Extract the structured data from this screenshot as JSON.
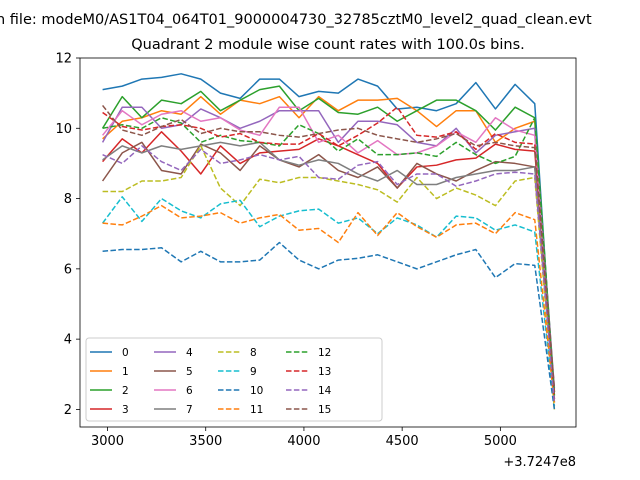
{
  "chart_data": {
    "type": "line",
    "suptitle": "n file: modeM0/AS1T04_064T01_9000004730_32785cztM0_level2_quad_clean.evt",
    "title": "Quadrant 2 module wise count rates with 100.0s bins.",
    "xlabel": "",
    "ylabel": "",
    "x_offset_label": "+3.7247e8",
    "xlim": [
      2860,
      5385
    ],
    "ylim": [
      1.5,
      12
    ],
    "x_ticks": [
      3000,
      3500,
      4000,
      4500,
      5000
    ],
    "y_ticks": [
      2,
      4,
      6,
      8,
      10,
      12
    ],
    "grid": false,
    "legend_position": "lower-left",
    "legend_columns": 4,
    "x": [
      2975,
      3075,
      3175,
      3275,
      3375,
      3475,
      3575,
      3675,
      3775,
      3875,
      3975,
      4075,
      4175,
      4275,
      4375,
      4475,
      4575,
      4675,
      4775,
      4875,
      4975,
      5075,
      5175,
      5275
    ],
    "series": [
      {
        "name": "0",
        "color": "#1f77b4",
        "dash": "solid",
        "values": [
          11.1,
          11.2,
          11.4,
          11.45,
          11.55,
          11.4,
          11.0,
          10.85,
          11.4,
          11.4,
          10.9,
          11.05,
          11.0,
          11.4,
          11.2,
          10.55,
          10.6,
          10.5,
          10.7,
          11.3,
          10.55,
          11.25,
          10.7,
          2.2
        ]
      },
      {
        "name": "1",
        "color": "#ff7f0e",
        "dash": "solid",
        "values": [
          9.7,
          10.2,
          10.3,
          10.5,
          10.4,
          10.9,
          10.4,
          10.8,
          10.7,
          10.9,
          10.3,
          10.9,
          10.5,
          10.8,
          10.8,
          10.85,
          10.5,
          10.05,
          10.5,
          10.5,
          9.6,
          10.0,
          10.2,
          2.4
        ]
      },
      {
        "name": "2",
        "color": "#2ca02c",
        "dash": "solid",
        "values": [
          10.0,
          10.9,
          10.3,
          10.8,
          10.7,
          11.05,
          10.5,
          10.8,
          11.1,
          11.2,
          10.5,
          10.85,
          10.45,
          10.4,
          10.6,
          10.2,
          10.5,
          10.8,
          10.8,
          10.5,
          9.95,
          10.6,
          10.3,
          2.5
        ]
      },
      {
        "name": "3",
        "color": "#d62728",
        "dash": "solid",
        "values": [
          9.05,
          9.7,
          9.3,
          9.9,
          9.35,
          8.7,
          9.5,
          9.0,
          9.3,
          9.35,
          9.4,
          9.7,
          9.5,
          9.25,
          9.0,
          8.3,
          8.9,
          8.95,
          9.1,
          9.15,
          9.55,
          9.4,
          9.35,
          2.5
        ]
      },
      {
        "name": "4",
        "color": "#9467bd",
        "dash": "solid",
        "values": [
          9.6,
          10.6,
          10.6,
          10.0,
          10.1,
          10.55,
          10.3,
          10.0,
          10.2,
          10.5,
          10.5,
          10.5,
          9.6,
          10.2,
          10.2,
          10.1,
          9.6,
          9.5,
          10.0,
          9.3,
          9.8,
          9.9,
          10.0,
          2.6
        ]
      },
      {
        "name": "5",
        "color": "#8c564b",
        "dash": "solid",
        "values": [
          8.5,
          9.3,
          9.6,
          8.8,
          8.7,
          9.55,
          9.3,
          8.8,
          9.5,
          9.1,
          8.9,
          9.25,
          8.8,
          8.6,
          8.9,
          8.3,
          9.0,
          8.7,
          8.5,
          8.8,
          9.05,
          9.0,
          8.9,
          2.5
        ]
      },
      {
        "name": "6",
        "color": "#e377c2",
        "dash": "solid",
        "values": [
          9.8,
          10.5,
          10.1,
          10.4,
          10.5,
          10.2,
          10.3,
          9.95,
          9.8,
          10.6,
          10.6,
          9.6,
          9.8,
          9.3,
          9.65,
          9.25,
          9.3,
          9.5,
          9.9,
          9.6,
          10.3,
          9.95,
          9.8,
          2.2
        ]
      },
      {
        "name": "7",
        "color": "#7f7f7f",
        "dash": "solid",
        "values": [
          9.1,
          9.5,
          9.3,
          9.5,
          9.4,
          9.5,
          9.6,
          9.5,
          9.6,
          9.1,
          8.95,
          9.1,
          9.0,
          8.7,
          8.5,
          8.8,
          8.4,
          8.4,
          8.6,
          8.7,
          8.8,
          8.8,
          8.9,
          2.3
        ]
      },
      {
        "name": "8",
        "color": "#bcbd22",
        "dash": "dashed",
        "values": [
          8.2,
          8.2,
          8.5,
          8.5,
          8.6,
          9.5,
          8.3,
          7.8,
          8.55,
          8.45,
          8.6,
          8.6,
          8.5,
          8.4,
          8.25,
          7.9,
          8.6,
          8.0,
          8.3,
          8.1,
          7.8,
          8.5,
          8.6,
          2.0
        ]
      },
      {
        "name": "9",
        "color": "#17becf",
        "dash": "dashed",
        "values": [
          7.3,
          8.05,
          7.35,
          8.0,
          7.65,
          7.45,
          7.85,
          7.95,
          7.2,
          7.5,
          7.65,
          7.7,
          7.3,
          7.45,
          7.0,
          7.45,
          7.25,
          6.9,
          7.5,
          7.45,
          7.1,
          7.25,
          7.05,
          2.1
        ]
      },
      {
        "name": "10",
        "color": "#1f77b4",
        "dash": "dashed",
        "values": [
          6.5,
          6.55,
          6.55,
          6.6,
          6.2,
          6.5,
          6.2,
          6.2,
          6.25,
          6.75,
          6.25,
          6.0,
          6.25,
          6.3,
          6.4,
          6.2,
          6.0,
          6.2,
          6.4,
          6.55,
          5.75,
          6.15,
          6.1,
          2.0
        ]
      },
      {
        "name": "11",
        "color": "#ff7f0e",
        "dash": "dashed",
        "values": [
          7.3,
          7.25,
          7.5,
          7.8,
          7.45,
          7.5,
          7.6,
          7.3,
          7.45,
          7.55,
          7.1,
          7.15,
          6.75,
          7.6,
          6.95,
          7.6,
          7.2,
          6.9,
          7.25,
          7.3,
          7.0,
          7.6,
          7.4,
          2.2
        ]
      },
      {
        "name": "12",
        "color": "#2ca02c",
        "dash": "dashed",
        "values": [
          10.0,
          10.1,
          10.0,
          10.3,
          10.15,
          9.6,
          9.8,
          9.65,
          9.6,
          9.5,
          10.1,
          9.85,
          9.35,
          9.7,
          9.25,
          9.25,
          9.3,
          9.2,
          9.6,
          9.25,
          9.0,
          9.2,
          10.3,
          2.4
        ]
      },
      {
        "name": "13",
        "color": "#d62728",
        "dash": "dashed",
        "values": [
          10.45,
          10.05,
          9.95,
          10.05,
          10.1,
          10.0,
          9.75,
          9.85,
          9.6,
          9.55,
          9.55,
          9.85,
          9.5,
          9.8,
          10.15,
          10.6,
          9.8,
          9.75,
          9.9,
          9.4,
          9.85,
          9.6,
          9.55,
          2.3
        ]
      },
      {
        "name": "14",
        "color": "#9467bd",
        "dash": "dashed",
        "values": [
          9.25,
          9.0,
          9.5,
          9.05,
          8.8,
          9.4,
          9.0,
          9.1,
          9.25,
          9.1,
          9.2,
          8.6,
          8.55,
          8.95,
          9.05,
          8.4,
          8.7,
          8.7,
          8.35,
          8.5,
          8.7,
          8.75,
          8.7,
          2.2
        ]
      },
      {
        "name": "15",
        "color": "#8c564b",
        "dash": "dashed",
        "values": [
          10.65,
          9.95,
          9.8,
          10.05,
          10.25,
          9.85,
          10.0,
          9.9,
          9.9,
          9.8,
          9.75,
          9.85,
          9.95,
          10.0,
          9.8,
          9.7,
          9.6,
          9.7,
          9.85,
          9.5,
          9.6,
          9.5,
          9.45,
          2.6
        ]
      }
    ]
  }
}
